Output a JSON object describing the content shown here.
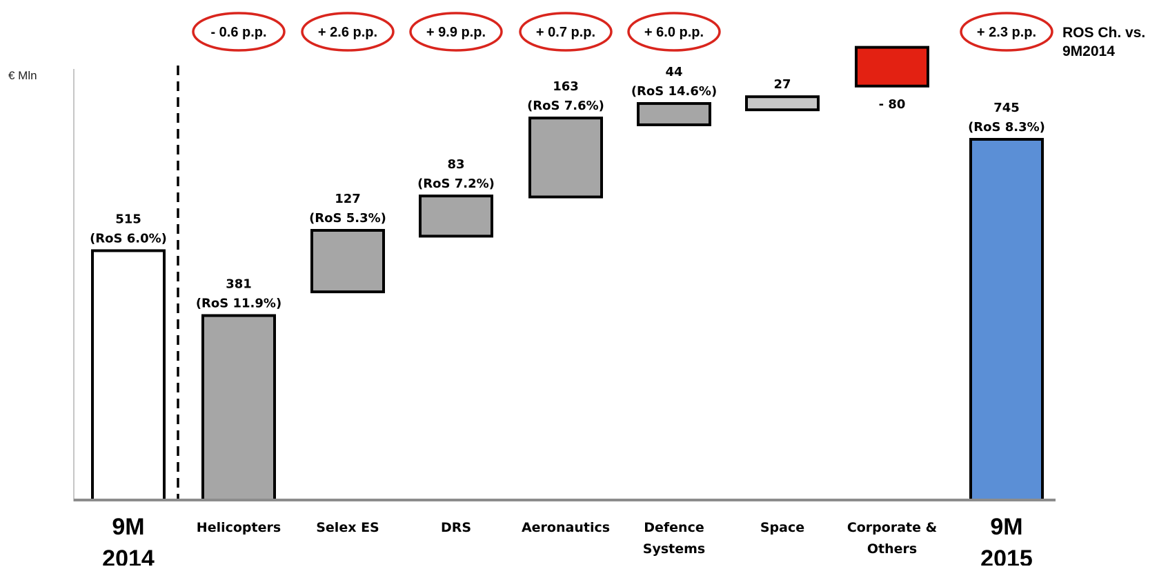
{
  "chart_data": {
    "type": "waterfall",
    "unit_label": "€ Mln",
    "ros_change_title": "ROS Ch. vs. 9M2014",
    "ylim": [
      0,
      820
    ],
    "grid": false,
    "legend": "none",
    "colors": {
      "start_fill": "#ffffff",
      "segment_fill": "#a6a6a6",
      "space_fill": "#c8c8c8",
      "negative_fill": "#e32112",
      "end_fill": "#5b8fd6",
      "outline": "#000000",
      "ellipse_stroke": "#d9251d",
      "axis": "#8c8c8c"
    },
    "categories": [
      {
        "label": "9M 2014",
        "label_lines": [
          "9M",
          "2014"
        ],
        "value": 515,
        "ros": "(RoS 6.0%)",
        "kind": "start",
        "ros_change": ""
      },
      {
        "label": "Helicopters",
        "label_lines": [
          "Helicopters"
        ],
        "value": 381,
        "ros": "(RoS 11.9%)",
        "kind": "segment",
        "ros_change": "- 0.6 p.p."
      },
      {
        "label": "Selex ES",
        "label_lines": [
          "Selex ES"
        ],
        "value": 127,
        "ros": "(RoS 5.3%)",
        "kind": "segment",
        "ros_change": "+ 2.6 p.p."
      },
      {
        "label": "DRS",
        "label_lines": [
          "DRS"
        ],
        "value": 83,
        "ros": "(RoS 7.2%)",
        "kind": "segment",
        "ros_change": "+ 9.9 p.p."
      },
      {
        "label": "Aeronautics",
        "label_lines": [
          "Aeronautics"
        ],
        "value": 163,
        "ros": "(RoS 7.6%)",
        "kind": "segment",
        "ros_change": "+ 0.7 p.p."
      },
      {
        "label": "Defence Systems",
        "label_lines": [
          "Defence",
          "Systems"
        ],
        "value": 44,
        "ros": "(RoS 14.6%)",
        "kind": "segment",
        "ros_change": "+ 6.0 p.p."
      },
      {
        "label": "Space",
        "label_lines": [
          "Space"
        ],
        "value": 27,
        "ros": "",
        "kind": "segment",
        "ros_change": ""
      },
      {
        "label": "Corporate & Others",
        "label_lines": [
          "Corporate &",
          "Others"
        ],
        "value": -80,
        "ros": "",
        "kind": "negative",
        "ros_change": ""
      },
      {
        "label": "9M 2015",
        "label_lines": [
          "9M",
          "2015"
        ],
        "value": 745,
        "ros": "(RoS 8.3%)",
        "kind": "end",
        "ros_change": "+ 2.3 p.p."
      }
    ],
    "value_labels": [
      "515",
      "381",
      "127",
      "83",
      "163",
      "44",
      "27",
      "- 80",
      "745"
    ]
  }
}
